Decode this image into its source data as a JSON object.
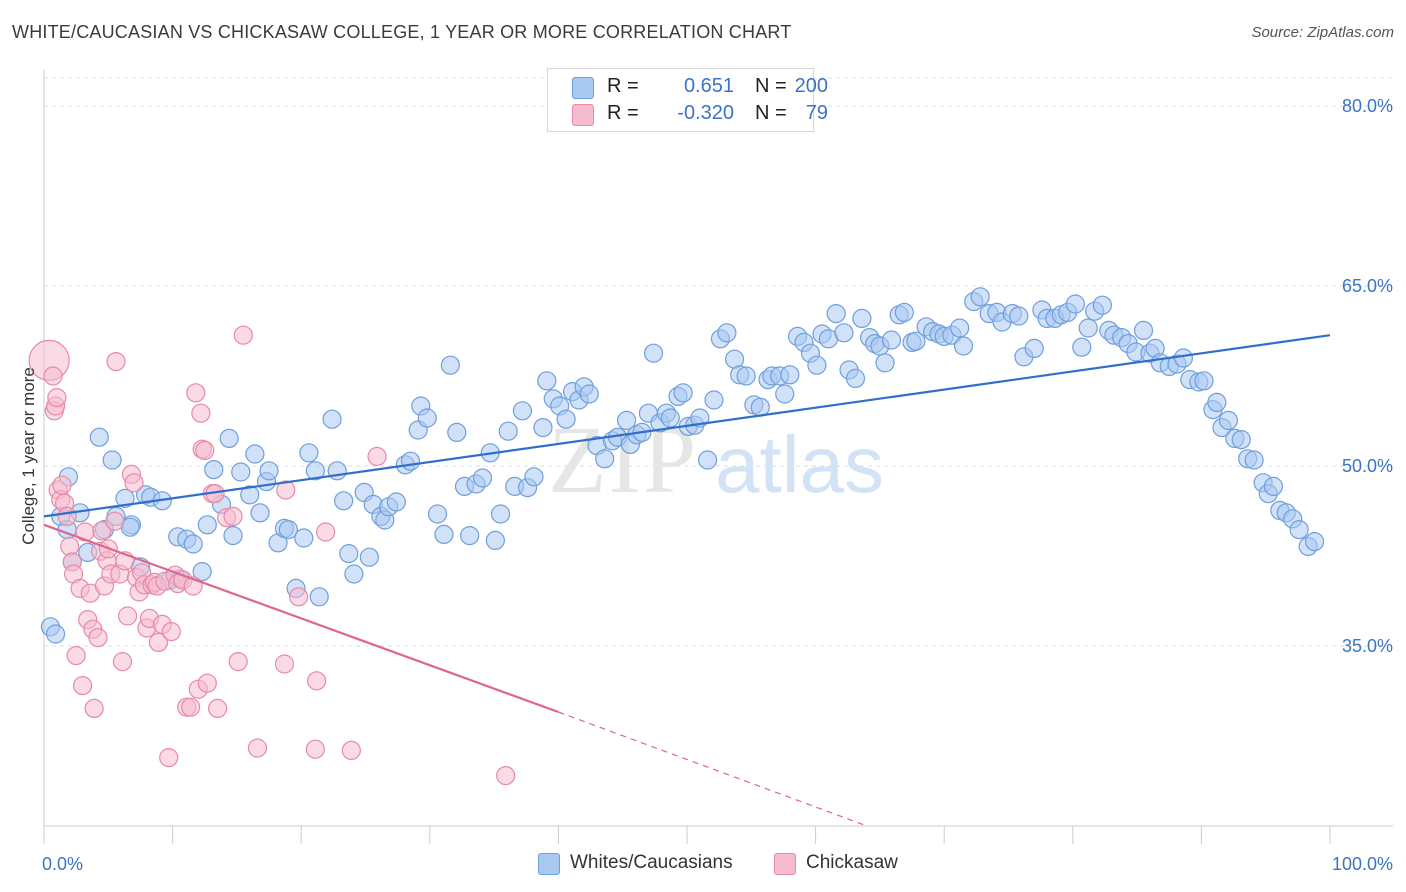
{
  "title": "WHITE/CAUCASIAN VS CHICKASAW COLLEGE, 1 YEAR OR MORE CORRELATION CHART",
  "source": "Source: ZipAtlas.com",
  "watermark": {
    "zip": "ZIP",
    "atlas": "atlas"
  },
  "legend": {
    "rows": [
      {
        "r_label": "R =",
        "r_value": "0.651",
        "n_label": "N =",
        "n_value": "200",
        "color": "#a9c9f2",
        "border": "#6f9fdc"
      },
      {
        "r_label": "R =",
        "r_value": "-0.320",
        "n_label": "N =",
        "n_value": "79",
        "color": "#f6bccd",
        "border": "#e78aa8"
      }
    ]
  },
  "bottom_legend": [
    {
      "label": "Whites/Caucasians",
      "color": "#a9c9f2",
      "border": "#6f9fdc"
    },
    {
      "label": "Chickasaw",
      "color": "#f6bccd",
      "border": "#e78aa8"
    }
  ],
  "chart_data": {
    "type": "scatter",
    "title": "WHITE/CAUCASIAN VS CHICKASAW COLLEGE, 1 YEAR OR MORE CORRELATION CHART",
    "xlabel": "",
    "ylabel": "College, 1 year or more",
    "xlim": [
      0,
      100
    ],
    "ylim": [
      20,
      83
    ],
    "x_tick_labels": [
      "0.0%",
      "100.0%"
    ],
    "y_ticks": [
      35,
      50,
      65,
      80
    ],
    "y_tick_labels": [
      "35.0%",
      "50.0%",
      "65.0%",
      "80.0%"
    ],
    "grid": "horizontal dashed",
    "legend_position": "top-center",
    "series": [
      {
        "name": "Whites/Caucasians",
        "color": "#6f9fdc",
        "fill": "#a9c9f2",
        "trend": {
          "x": [
            0,
            100
          ],
          "y": [
            45.8,
            60.9
          ]
        },
        "points": [
          [
            0.5,
            36.6
          ],
          [
            0.9,
            36.0
          ],
          [
            1.3,
            45.8
          ],
          [
            1.8,
            44.7
          ],
          [
            1.9,
            49.1
          ],
          [
            2.2,
            42.0
          ],
          [
            2.8,
            46.1
          ],
          [
            3.4,
            42.8
          ],
          [
            4.3,
            52.4
          ],
          [
            4.7,
            44.7
          ],
          [
            5.3,
            50.5
          ],
          [
            5.6,
            45.8
          ],
          [
            6.3,
            47.3
          ],
          [
            6.8,
            45.1
          ],
          [
            6.7,
            44.9
          ],
          [
            7.5,
            41.6
          ],
          [
            7.9,
            47.6
          ],
          [
            8.3,
            47.4
          ],
          [
            9.2,
            47.1
          ],
          [
            9.8,
            40.5
          ],
          [
            10.4,
            44.1
          ],
          [
            10.6,
            40.6
          ],
          [
            11.1,
            43.9
          ],
          [
            11.6,
            43.5
          ],
          [
            12.3,
            41.2
          ],
          [
            12.7,
            45.1
          ],
          [
            13.2,
            49.7
          ],
          [
            13.8,
            46.8
          ],
          [
            14.4,
            52.3
          ],
          [
            14.7,
            44.2
          ],
          [
            15.3,
            49.5
          ],
          [
            16.0,
            47.6
          ],
          [
            16.4,
            51.0
          ],
          [
            16.8,
            46.1
          ],
          [
            17.3,
            48.7
          ],
          [
            17.5,
            49.6
          ],
          [
            18.2,
            43.6
          ],
          [
            18.7,
            44.8
          ],
          [
            19.0,
            44.7
          ],
          [
            19.6,
            39.8
          ],
          [
            20.2,
            44.0
          ],
          [
            20.6,
            51.1
          ],
          [
            21.1,
            49.6
          ],
          [
            21.4,
            39.1
          ],
          [
            22.4,
            53.9
          ],
          [
            22.8,
            49.6
          ],
          [
            23.3,
            47.1
          ],
          [
            23.7,
            42.7
          ],
          [
            24.1,
            41.0
          ],
          [
            24.9,
            47.8
          ],
          [
            25.3,
            42.4
          ],
          [
            25.6,
            46.8
          ],
          [
            26.2,
            45.8
          ],
          [
            26.5,
            45.5
          ],
          [
            26.8,
            46.6
          ],
          [
            27.4,
            47.0
          ],
          [
            28.1,
            50.1
          ],
          [
            28.5,
            50.4
          ],
          [
            29.1,
            53.0
          ],
          [
            29.3,
            55.0
          ],
          [
            29.8,
            54.0
          ],
          [
            30.6,
            46.0
          ],
          [
            31.1,
            44.3
          ],
          [
            31.6,
            58.4
          ],
          [
            32.1,
            52.8
          ],
          [
            32.7,
            48.3
          ],
          [
            33.1,
            44.2
          ],
          [
            33.6,
            48.5
          ],
          [
            34.1,
            49.0
          ],
          [
            34.7,
            51.1
          ],
          [
            35.1,
            43.8
          ],
          [
            35.5,
            46.0
          ],
          [
            36.1,
            52.9
          ],
          [
            36.6,
            48.3
          ],
          [
            37.2,
            54.6
          ],
          [
            37.6,
            48.2
          ],
          [
            38.1,
            49.1
          ],
          [
            38.8,
            53.2
          ],
          [
            39.1,
            57.1
          ],
          [
            39.6,
            55.6
          ],
          [
            40.1,
            55.0
          ],
          [
            40.6,
            53.9
          ],
          [
            41.1,
            56.2
          ],
          [
            41.6,
            55.5
          ],
          [
            42.0,
            56.6
          ],
          [
            42.4,
            56.0
          ],
          [
            43.0,
            51.7
          ],
          [
            43.6,
            50.6
          ],
          [
            44.2,
            52.1
          ],
          [
            44.6,
            52.4
          ],
          [
            45.3,
            53.8
          ],
          [
            45.6,
            51.8
          ],
          [
            46.1,
            52.6
          ],
          [
            46.5,
            52.8
          ],
          [
            47.0,
            54.4
          ],
          [
            47.4,
            59.4
          ],
          [
            47.9,
            53.6
          ],
          [
            48.4,
            54.4
          ],
          [
            48.7,
            54.0
          ],
          [
            49.3,
            55.8
          ],
          [
            49.7,
            56.1
          ],
          [
            50.1,
            53.3
          ],
          [
            50.6,
            53.4
          ],
          [
            51.0,
            54.0
          ],
          [
            51.6,
            50.5
          ],
          [
            52.1,
            55.5
          ],
          [
            52.6,
            60.6
          ],
          [
            53.1,
            61.1
          ],
          [
            53.7,
            58.9
          ],
          [
            54.1,
            57.6
          ],
          [
            54.6,
            57.5
          ],
          [
            55.2,
            55.1
          ],
          [
            55.7,
            54.9
          ],
          [
            56.3,
            57.2
          ],
          [
            56.6,
            57.5
          ],
          [
            57.2,
            57.5
          ],
          [
            57.6,
            56.0
          ],
          [
            58.0,
            57.6
          ],
          [
            58.6,
            60.8
          ],
          [
            59.1,
            60.3
          ],
          [
            59.6,
            59.4
          ],
          [
            60.1,
            58.4
          ],
          [
            60.5,
            61.0
          ],
          [
            61.0,
            60.6
          ],
          [
            61.6,
            62.7
          ],
          [
            62.2,
            61.1
          ],
          [
            62.6,
            58.0
          ],
          [
            63.1,
            57.3
          ],
          [
            63.6,
            62.3
          ],
          [
            64.2,
            60.7
          ],
          [
            64.6,
            60.2
          ],
          [
            65.0,
            60.0
          ],
          [
            65.4,
            58.6
          ],
          [
            65.9,
            60.5
          ],
          [
            66.5,
            62.6
          ],
          [
            66.9,
            62.8
          ],
          [
            67.5,
            60.3
          ],
          [
            67.8,
            60.4
          ],
          [
            68.6,
            61.6
          ],
          [
            69.1,
            61.2
          ],
          [
            69.6,
            61.0
          ],
          [
            70.0,
            60.8
          ],
          [
            70.6,
            60.9
          ],
          [
            71.2,
            61.5
          ],
          [
            71.5,
            60.0
          ],
          [
            72.3,
            63.7
          ],
          [
            72.8,
            64.1
          ],
          [
            73.5,
            62.7
          ],
          [
            74.1,
            62.8
          ],
          [
            74.5,
            62.0
          ],
          [
            75.3,
            62.7
          ],
          [
            75.8,
            62.5
          ],
          [
            76.2,
            59.1
          ],
          [
            77.0,
            59.8
          ],
          [
            77.6,
            63.0
          ],
          [
            78.0,
            62.3
          ],
          [
            78.6,
            62.3
          ],
          [
            79.1,
            62.6
          ],
          [
            79.6,
            62.8
          ],
          [
            80.2,
            63.5
          ],
          [
            80.7,
            59.9
          ],
          [
            81.2,
            61.5
          ],
          [
            81.7,
            62.9
          ],
          [
            82.3,
            63.4
          ],
          [
            82.8,
            61.3
          ],
          [
            83.2,
            60.9
          ],
          [
            83.8,
            60.7
          ],
          [
            84.3,
            60.2
          ],
          [
            84.9,
            59.5
          ],
          [
            85.5,
            61.3
          ],
          [
            86.0,
            59.4
          ],
          [
            86.4,
            59.8
          ],
          [
            86.8,
            58.6
          ],
          [
            87.5,
            58.3
          ],
          [
            88.1,
            58.5
          ],
          [
            88.6,
            59.0
          ],
          [
            89.1,
            57.2
          ],
          [
            89.8,
            57.0
          ],
          [
            90.2,
            57.1
          ],
          [
            90.9,
            54.7
          ],
          [
            91.2,
            55.3
          ],
          [
            91.6,
            53.2
          ],
          [
            92.1,
            53.8
          ],
          [
            92.6,
            52.3
          ],
          [
            93.1,
            52.2
          ],
          [
            93.6,
            50.6
          ],
          [
            94.1,
            50.5
          ],
          [
            94.8,
            48.6
          ],
          [
            95.2,
            47.7
          ],
          [
            95.6,
            48.3
          ],
          [
            96.1,
            46.3
          ],
          [
            96.6,
            46.1
          ],
          [
            97.1,
            45.6
          ],
          [
            97.6,
            44.7
          ],
          [
            98.3,
            43.3
          ],
          [
            98.8,
            43.7
          ]
        ]
      },
      {
        "name": "Chickasaw",
        "color": "#e78aa8",
        "fill": "#f6bccd",
        "trend": {
          "x": [
            0,
            40
          ],
          "y": [
            45.1,
            29.5
          ]
        },
        "trend_dashed": {
          "x": [
            40,
            64
          ],
          "y": [
            29.5,
            20
          ]
        },
        "points": [
          [
            0.4,
            58.8
          ],
          [
            0.7,
            57.5
          ],
          [
            0.8,
            54.6
          ],
          [
            0.9,
            55.0
          ],
          [
            1.0,
            55.7
          ],
          [
            1.1,
            48.0
          ],
          [
            1.3,
            47.2
          ],
          [
            1.4,
            48.4
          ],
          [
            1.6,
            46.9
          ],
          [
            1.8,
            45.8
          ],
          [
            2.0,
            43.3
          ],
          [
            2.2,
            42.0
          ],
          [
            2.3,
            41.0
          ],
          [
            2.5,
            34.2
          ],
          [
            2.8,
            39.8
          ],
          [
            3.0,
            31.7
          ],
          [
            3.2,
            44.5
          ],
          [
            3.4,
            37.2
          ],
          [
            3.6,
            39.4
          ],
          [
            3.8,
            36.4
          ],
          [
            3.9,
            29.8
          ],
          [
            4.2,
            35.7
          ],
          [
            4.4,
            42.9
          ],
          [
            4.5,
            44.6
          ],
          [
            4.7,
            40.0
          ],
          [
            4.9,
            42.1
          ],
          [
            5.0,
            43.1
          ],
          [
            5.2,
            41.0
          ],
          [
            5.5,
            45.4
          ],
          [
            5.6,
            58.7
          ],
          [
            5.9,
            41.0
          ],
          [
            6.1,
            33.7
          ],
          [
            6.3,
            42.1
          ],
          [
            6.5,
            37.5
          ],
          [
            6.8,
            49.3
          ],
          [
            7.0,
            48.6
          ],
          [
            7.2,
            40.7
          ],
          [
            7.4,
            39.5
          ],
          [
            7.6,
            41.1
          ],
          [
            7.8,
            40.1
          ],
          [
            8.0,
            36.5
          ],
          [
            8.2,
            37.3
          ],
          [
            8.4,
            40.1
          ],
          [
            8.6,
            40.3
          ],
          [
            8.8,
            40.0
          ],
          [
            8.9,
            35.3
          ],
          [
            9.2,
            36.8
          ],
          [
            9.4,
            40.4
          ],
          [
            9.7,
            25.7
          ],
          [
            9.9,
            36.2
          ],
          [
            10.2,
            40.9
          ],
          [
            10.4,
            40.2
          ],
          [
            10.8,
            40.5
          ],
          [
            11.1,
            29.9
          ],
          [
            11.4,
            29.9
          ],
          [
            11.6,
            40.0
          ],
          [
            11.8,
            56.1
          ],
          [
            12.0,
            31.4
          ],
          [
            12.2,
            54.4
          ],
          [
            12.3,
            51.4
          ],
          [
            12.5,
            51.3
          ],
          [
            12.7,
            31.9
          ],
          [
            13.1,
            47.7
          ],
          [
            13.3,
            47.7
          ],
          [
            13.5,
            29.8
          ],
          [
            14.2,
            45.7
          ],
          [
            14.7,
            45.8
          ],
          [
            15.1,
            33.7
          ],
          [
            15.5,
            60.9
          ],
          [
            16.6,
            26.5
          ],
          [
            18.7,
            33.5
          ],
          [
            18.8,
            48.0
          ],
          [
            19.8,
            39.1
          ],
          [
            21.1,
            26.4
          ],
          [
            21.2,
            32.1
          ],
          [
            21.9,
            44.5
          ],
          [
            23.9,
            26.3
          ],
          [
            25.9,
            50.8
          ],
          [
            35.9,
            24.2
          ]
        ]
      }
    ]
  }
}
